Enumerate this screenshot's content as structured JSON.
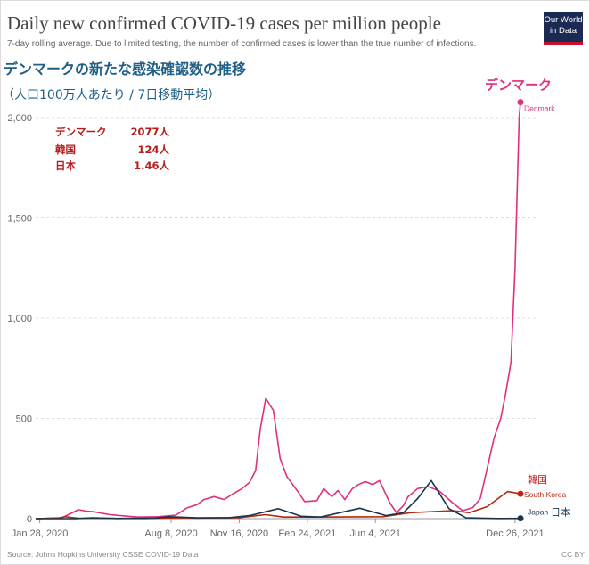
{
  "header": {
    "title": "Daily new confirmed COVID-19 cases per million people",
    "subtitle": "7-day rolling average. Due to limited testing, the number of confirmed cases is lower than the true number of infections.",
    "jp_title": "デンマークの新たな感染確認数の推移",
    "jp_subtitle": "（人口100万人あたり / 7日移動平均）",
    "logo_line1": "Our World",
    "logo_line2": "in Data"
  },
  "footer": {
    "source": "Source: Johns Hopkins University CSSE COVID-19 Data",
    "license": "CC BY"
  },
  "colors": {
    "denmark": "#e0307c",
    "korea": "#b8270e",
    "japan": "#18354c",
    "annotation_red": "#b71c1c",
    "axis": "#999999",
    "grid": "#dddddd"
  },
  "summary_box": [
    {
      "name": "デンマーク",
      "value": "2077人"
    },
    {
      "name": "韓国",
      "value": "124人"
    },
    {
      "name": "日本",
      "value": "1.46人"
    }
  ],
  "chart_data": {
    "type": "line",
    "title": "Daily new confirmed COVID-19 cases per million people",
    "ylim": [
      0,
      2000
    ],
    "y_ticks": [
      0,
      500,
      1000,
      1500,
      2000
    ],
    "y_tick_labels": [
      "0",
      "500",
      "1,000",
      "1,500",
      "2,000"
    ],
    "x_range": [
      "2020-01-22",
      "2022-01-03"
    ],
    "x_tick_dates": [
      "2020-01-28",
      "2020-08-08",
      "2020-11-16",
      "2021-02-24",
      "2021-06-04",
      "2021-12-26"
    ],
    "x_tick_labels": [
      "Jan 28, 2020",
      "Aug 8, 2020",
      "Nov 16, 2020",
      "Feb 24, 2021",
      "Jun 4, 2021",
      "Dec 26, 2021"
    ],
    "grid": "horizontal",
    "series": [
      {
        "name": "Denmark",
        "jp_label": "デンマーク",
        "end_label": "Denmark",
        "x": [
          "2020-01-22",
          "2020-03-01",
          "2020-03-25",
          "2020-04-05",
          "2020-04-15",
          "2020-05-10",
          "2020-06-20",
          "2020-07-20",
          "2020-08-15",
          "2020-09-01",
          "2020-09-15",
          "2020-09-25",
          "2020-10-10",
          "2020-10-25",
          "2020-11-05",
          "2020-11-20",
          "2020-12-01",
          "2020-12-10",
          "2020-12-17",
          "2020-12-25",
          "2021-01-05",
          "2021-01-15",
          "2021-01-25",
          "2021-02-10",
          "2021-02-20",
          "2021-03-10",
          "2021-03-20",
          "2021-04-01",
          "2021-04-10",
          "2021-04-20",
          "2021-05-01",
          "2021-05-10",
          "2021-05-20",
          "2021-05-31",
          "2021-06-10",
          "2021-06-25",
          "2021-07-05",
          "2021-07-15",
          "2021-07-22",
          "2021-08-05",
          "2021-08-20",
          "2021-09-05",
          "2021-09-25",
          "2021-10-10",
          "2021-10-25",
          "2021-11-05",
          "2021-11-15",
          "2021-11-25",
          "2021-12-05",
          "2021-12-12",
          "2021-12-20",
          "2021-12-26",
          "2022-01-01",
          "2022-01-03"
        ],
        "values": [
          0,
          5,
          45,
          38,
          35,
          20,
          8,
          10,
          18,
          55,
          70,
          95,
          110,
          95,
          120,
          150,
          180,
          240,
          450,
          600,
          540,
          300,
          210,
          135,
          85,
          90,
          150,
          110,
          140,
          95,
          150,
          170,
          185,
          170,
          190,
          80,
          30,
          65,
          110,
          150,
          160,
          140,
          80,
          40,
          55,
          100,
          250,
          400,
          500,
          620,
          780,
          1250,
          2000,
          2077
        ]
      },
      {
        "name": "South Korea",
        "jp_label": "韓国",
        "end_label": "South Korea",
        "x": [
          "2020-01-22",
          "2020-02-25",
          "2020-03-05",
          "2020-03-25",
          "2020-07-01",
          "2020-08-25",
          "2020-09-15",
          "2020-11-15",
          "2020-12-25",
          "2021-01-20",
          "2021-03-01",
          "2021-06-15",
          "2021-07-25",
          "2021-09-25",
          "2021-10-20",
          "2021-11-15",
          "2021-12-15",
          "2022-01-03"
        ],
        "values": [
          0,
          3,
          10,
          2,
          1,
          5,
          3,
          5,
          20,
          8,
          8,
          10,
          30,
          40,
          30,
          60,
          135,
          124
        ]
      },
      {
        "name": "Japan",
        "jp_label": "日本",
        "end_label": "Japan",
        "x": [
          "2020-01-22",
          "2020-03-20",
          "2020-04-15",
          "2020-05-20",
          "2020-07-15",
          "2020-08-05",
          "2020-09-15",
          "2020-11-01",
          "2020-12-01",
          "2021-01-12",
          "2021-02-15",
          "2021-03-15",
          "2021-05-12",
          "2021-06-20",
          "2021-07-15",
          "2021-08-05",
          "2021-08-25",
          "2021-09-20",
          "2021-10-15",
          "2021-12-01",
          "2022-01-03"
        ],
        "values": [
          0,
          0.5,
          4,
          1,
          3,
          10,
          4,
          5,
          15,
          50,
          12,
          8,
          52,
          15,
          30,
          100,
          190,
          50,
          4,
          1,
          1.46
        ]
      }
    ]
  }
}
